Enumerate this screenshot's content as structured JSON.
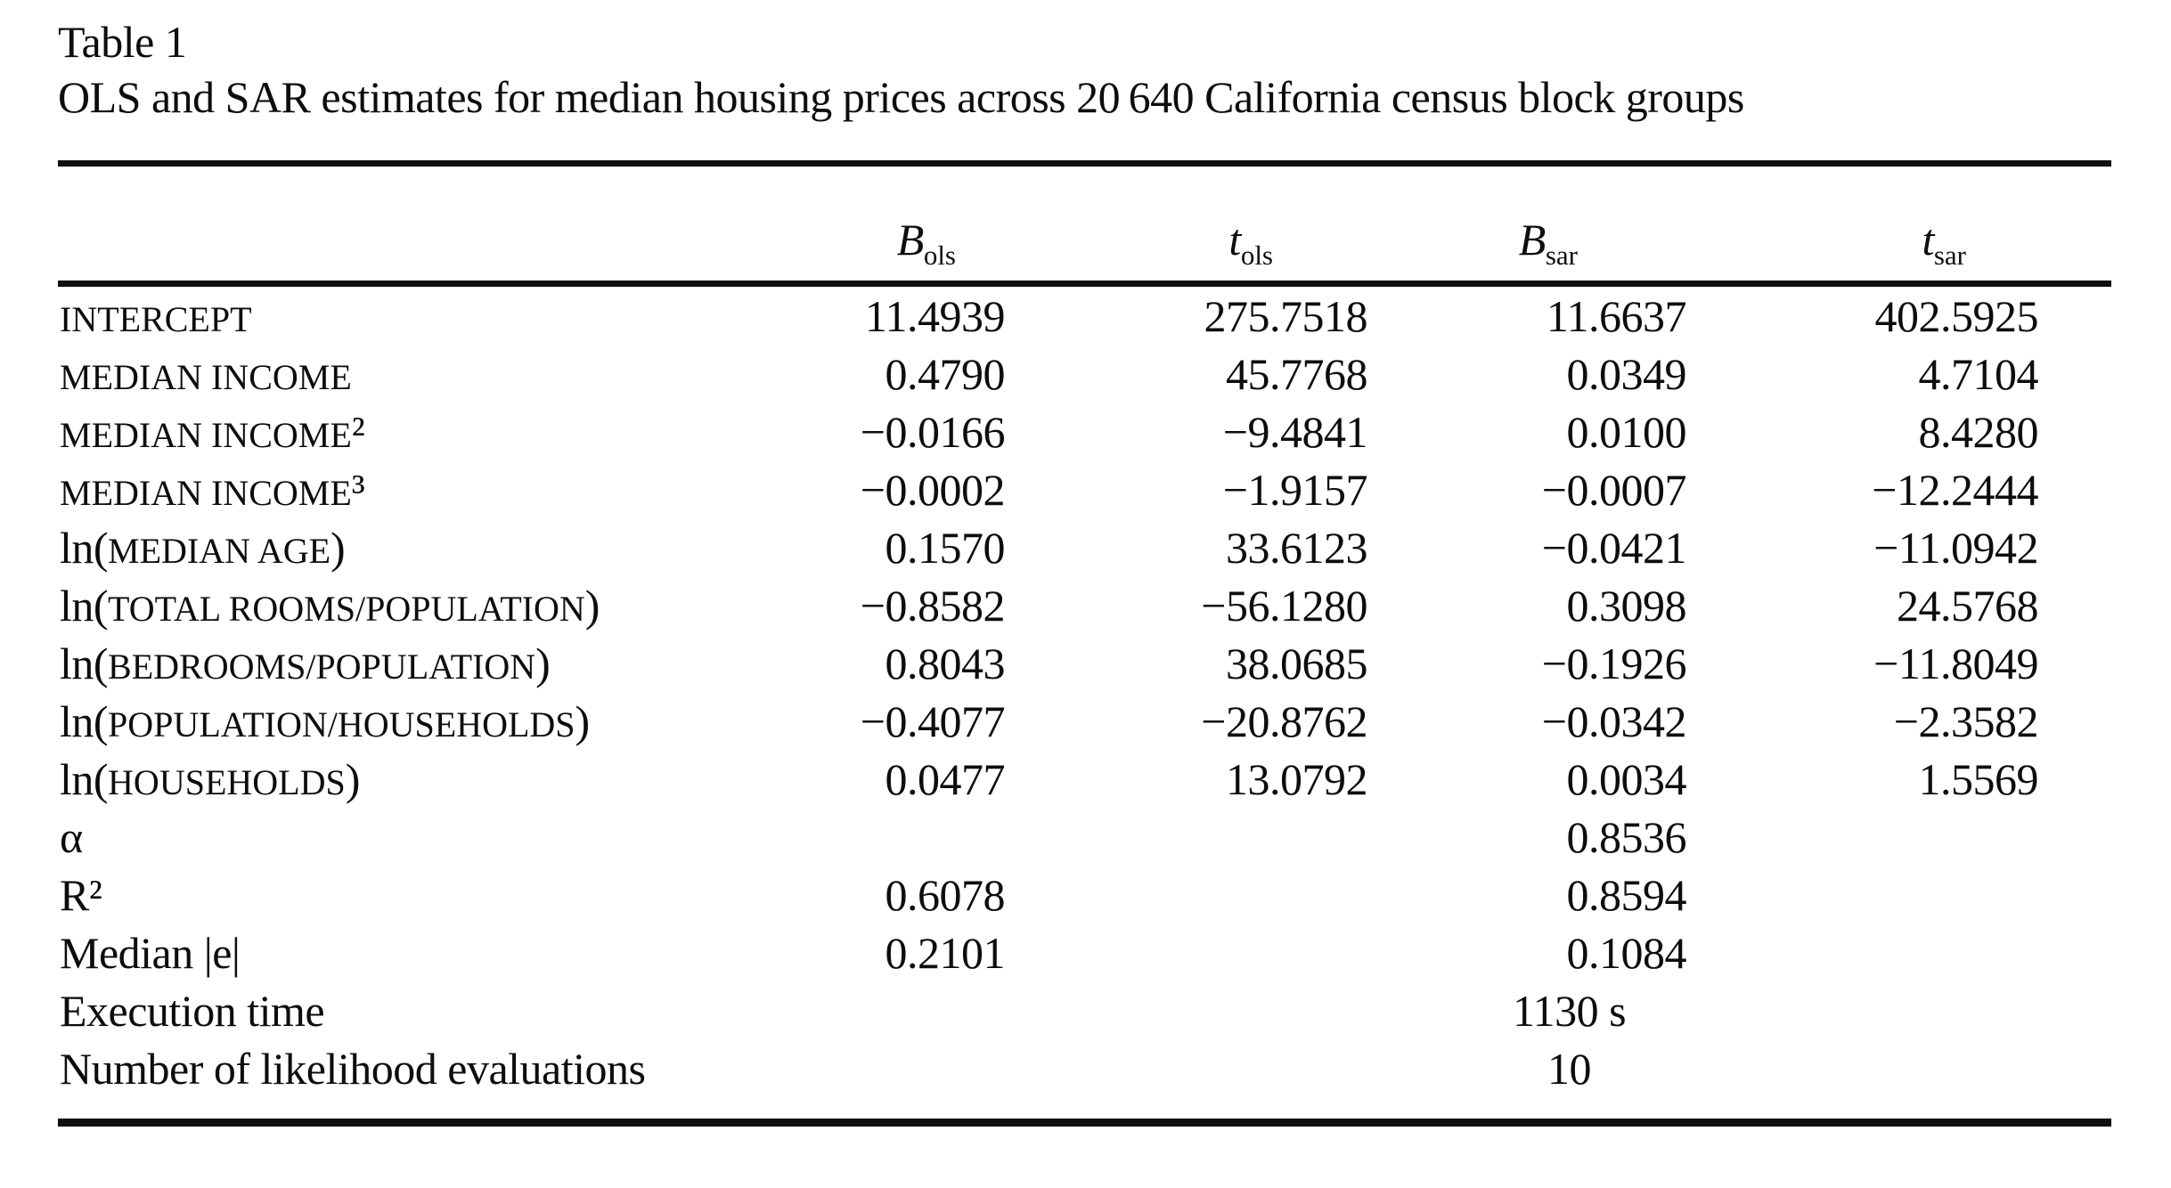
{
  "title": {
    "label": "Table 1",
    "caption": "OLS and SAR estimates for median housing prices across 20 640 California census block groups"
  },
  "columns": [
    {
      "base": "B",
      "sub": "ols"
    },
    {
      "base": "t",
      "sub": "ols"
    },
    {
      "base": "B",
      "sub": "sar"
    },
    {
      "base": "t",
      "sub": "sar"
    }
  ],
  "rows": [
    {
      "label": "INTERCEPT",
      "b_ols": "11.4939",
      "t_ols": "275.7518",
      "b_sar": "11.6637",
      "t_sar": "402.5925"
    },
    {
      "label": "MEDIAN INCOME",
      "b_ols": "0.4790",
      "t_ols": "45.7768",
      "b_sar": "0.0349",
      "t_sar": "4.7104"
    },
    {
      "label": "MEDIAN INCOME²",
      "b_ols": "−0.0166",
      "t_ols": "−9.4841",
      "b_sar": "0.0100",
      "t_sar": "8.4280"
    },
    {
      "label": "MEDIAN INCOME³",
      "b_ols": "−0.0002",
      "t_ols": "−1.9157",
      "b_sar": "−0.0007",
      "t_sar": "−12.2444"
    },
    {
      "label": "ln(MEDIAN AGE)",
      "b_ols": "0.1570",
      "t_ols": "33.6123",
      "b_sar": "−0.0421",
      "t_sar": "−11.0942"
    },
    {
      "label": "ln(TOTAL ROOMS/POPULATION)",
      "b_ols": "−0.8582",
      "t_ols": "−56.1280",
      "b_sar": "0.3098",
      "t_sar": "24.5768"
    },
    {
      "label": "ln(BEDROOMS/POPULATION)",
      "b_ols": "0.8043",
      "t_ols": "38.0685",
      "b_sar": "−0.1926",
      "t_sar": "−11.8049"
    },
    {
      "label": "ln(POPULATION/HOUSEHOLDS)",
      "b_ols": "−0.4077",
      "t_ols": "−20.8762",
      "b_sar": "−0.0342",
      "t_sar": "−2.3582"
    },
    {
      "label": "ln(HOUSEHOLDS)",
      "b_ols": "0.0477",
      "t_ols": "13.0792",
      "b_sar": "0.0034",
      "t_sar": "1.5569"
    },
    {
      "label": "α",
      "b_ols": "",
      "t_ols": "",
      "b_sar": "0.8536",
      "t_sar": ""
    },
    {
      "label": "R²",
      "b_ols": "0.6078",
      "t_ols": "",
      "b_sar": "0.8594",
      "t_sar": ""
    },
    {
      "label": "Median |e|",
      "b_ols": "0.2101",
      "t_ols": "",
      "b_sar": "0.1084",
      "t_sar": ""
    },
    {
      "label": "Execution time",
      "b_ols": "",
      "t_ols": "",
      "b_sar": "1130 s",
      "t_sar": ""
    },
    {
      "label": "Number of likelihood evaluations",
      "b_ols": "",
      "t_ols": "",
      "b_sar": "10",
      "t_sar": ""
    }
  ]
}
